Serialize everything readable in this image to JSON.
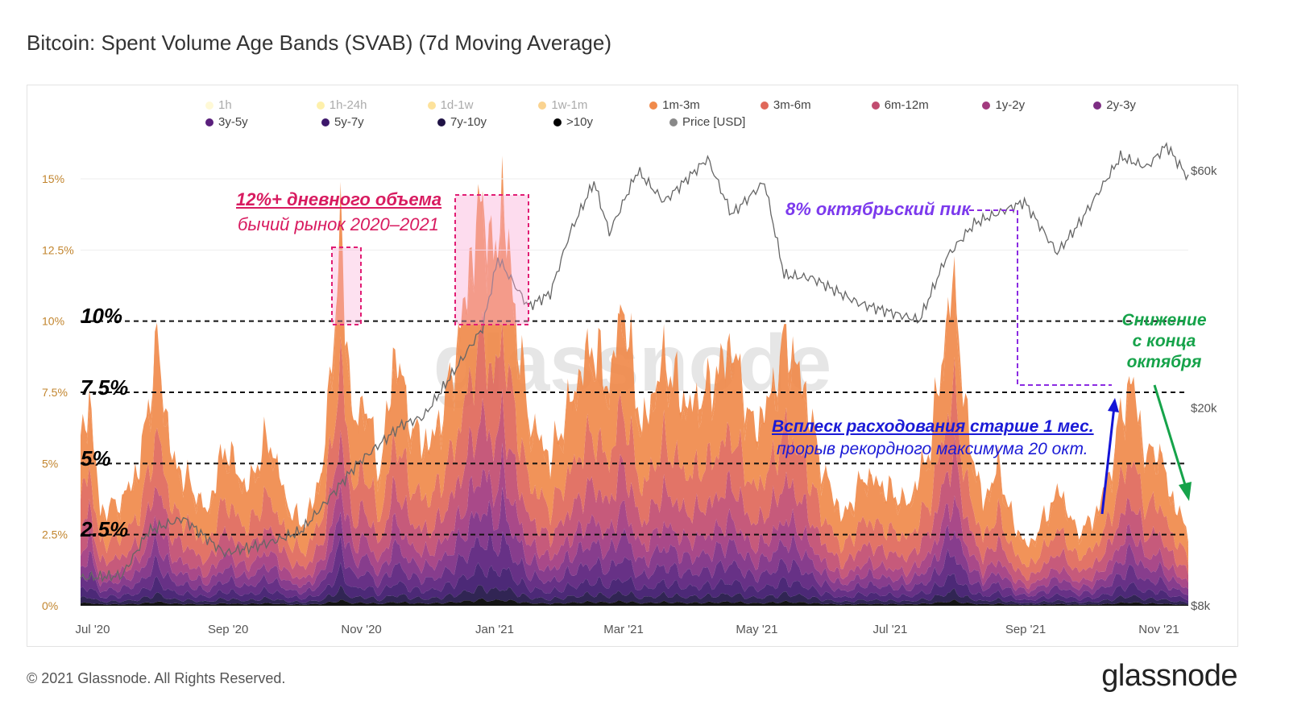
{
  "title": "Bitcoin: Spent Volume Age Bands (SVAB) (7d Moving Average)",
  "footer": "© 2021 Glassnode. All Rights Reserved.",
  "logo": "glassnode",
  "watermark": "glassnode",
  "colors": {
    "1h": "#fff3a6",
    "1h-24h": "#fde047",
    "1d-1w": "#fbbf24",
    "1w-1m": "#f59e0b",
    "1m-3m": "#f08a4b",
    "3m-6m": "#e0685a",
    "6m-12m": "#c14c70",
    "1y-2y": "#a23a7f",
    "2y-3y": "#7d2d83",
    "3y-5y": "#5a1f7c",
    "5y-7y": "#3d176b",
    "7y-10y": "#1f1245",
    ">10y": "#000000",
    "price": "#777777"
  },
  "legend": {
    "row1": [
      {
        "label": "1h",
        "color": "#fff3a6",
        "faded": true
      },
      {
        "label": "1h-24h",
        "color": "#fde047",
        "faded": true
      },
      {
        "label": "1d-1w",
        "color": "#fbbf24",
        "faded": true
      },
      {
        "label": "1w-1m",
        "color": "#f59e0b",
        "faded": true
      },
      {
        "label": "1m-3m",
        "color": "#f08a4b",
        "faded": false
      },
      {
        "label": "3m-6m",
        "color": "#e0685a",
        "faded": false
      },
      {
        "label": "6m-12m",
        "color": "#c14c70",
        "faded": false
      },
      {
        "label": "1y-2y",
        "color": "#a23a7f",
        "faded": false
      },
      {
        "label": "2y-3y",
        "color": "#7d2d83",
        "faded": false
      }
    ],
    "row2": [
      {
        "label": "3y-5y",
        "color": "#5a1f7c",
        "faded": false
      },
      {
        "label": "5y-7y",
        "color": "#3d176b",
        "faded": false
      },
      {
        "label": "7y-10y",
        "color": "#1f1245",
        "faded": false
      },
      {
        "label": ">10y",
        "color": "#000000",
        "faded": false
      },
      {
        "label": "Price [USD]",
        "color": "#888888",
        "faded": false
      }
    ]
  },
  "annotations": {
    "red_bold": "12%+ дневного объема",
    "red_sub": "бычий рынок 2020–2021",
    "purple": "8% октябрьский пик",
    "blue_bold": "Всплеск расходования старше 1 мес.",
    "blue_sub": "прорыв рекордного максимума 20 окт.",
    "green_1": "Снижение",
    "green_2": "с конца",
    "green_3": "октября",
    "level_10": "10%",
    "level_75": "7.5%",
    "level_5": "5%",
    "level_25": "2.5%"
  },
  "chart_data": {
    "type": "area",
    "stacked": true,
    "x_ticks": [
      "Jul '20",
      "Sep '20",
      "Nov '20",
      "Jan '21",
      "Mar '21",
      "May '21",
      "Jul '21",
      "Sep '21",
      "Nov '21"
    ],
    "y_left_ticks": [
      "0%",
      "2.5%",
      "5%",
      "7.5%",
      "10%",
      "12.5%",
      "15%"
    ],
    "y_left_range": [
      0,
      15
    ],
    "y_right_ticks": [
      "$8k",
      "$20k",
      "$60k"
    ],
    "y_right_scale": "log",
    "y_right_values": [
      8000,
      20000,
      60000
    ],
    "reference_lines": [
      2.5,
      5,
      7.5,
      10
    ],
    "x_range": [
      "2020-07-01",
      "2021-11-20"
    ],
    "series_1m_plus_total": {
      "name": "1m-3m",
      "points": [
        [
          "2020-07-01",
          5.5
        ],
        [
          "2020-07-05",
          7.2
        ],
        [
          "2020-07-10",
          3.2
        ],
        [
          "2020-07-20",
          3.6
        ],
        [
          "2020-07-28",
          4.8
        ],
        [
          "2020-08-05",
          9.0
        ],
        [
          "2020-08-12",
          5.0
        ],
        [
          "2020-08-20",
          4.2
        ],
        [
          "2020-08-28",
          3.2
        ],
        [
          "2020-09-05",
          5.5
        ],
        [
          "2020-09-15",
          4.0
        ],
        [
          "2020-09-25",
          5.8
        ],
        [
          "2020-10-05",
          3.2
        ],
        [
          "2020-10-12",
          2.8
        ],
        [
          "2020-10-20",
          4.8
        ],
        [
          "2020-10-28",
          12.5
        ],
        [
          "2020-11-03",
          6.0
        ],
        [
          "2020-11-08",
          7.2
        ],
        [
          "2020-11-15",
          4.5
        ],
        [
          "2020-11-22",
          8.8
        ],
        [
          "2020-11-30",
          6.0
        ],
        [
          "2020-12-08",
          5.5
        ],
        [
          "2020-12-15",
          7.0
        ],
        [
          "2020-12-22",
          9.5
        ],
        [
          "2020-12-28",
          12.5
        ],
        [
          "2021-01-02",
          14.0
        ],
        [
          "2021-01-06",
          11.5
        ],
        [
          "2021-01-10",
          14.2
        ],
        [
          "2021-01-15",
          10.5
        ],
        [
          "2021-01-22",
          6.5
        ],
        [
          "2021-02-01",
          5.0
        ],
        [
          "2021-02-10",
          7.0
        ],
        [
          "2021-02-20",
          9.0
        ],
        [
          "2021-02-28",
          7.5
        ],
        [
          "2021-03-06",
          10.5
        ],
        [
          "2021-03-15",
          6.0
        ],
        [
          "2021-03-25",
          8.5
        ],
        [
          "2021-04-05",
          6.8
        ],
        [
          "2021-04-15",
          7.5
        ],
        [
          "2021-04-25",
          9.0
        ],
        [
          "2021-05-05",
          6.0
        ],
        [
          "2021-05-12",
          7.0
        ],
        [
          "2021-05-20",
          9.2
        ],
        [
          "2021-05-28",
          7.5
        ],
        [
          "2021-06-05",
          4.8
        ],
        [
          "2021-06-15",
          3.0
        ],
        [
          "2021-06-25",
          4.5
        ],
        [
          "2021-07-05",
          4.0
        ],
        [
          "2021-07-15",
          3.5
        ],
        [
          "2021-07-25",
          5.5
        ],
        [
          "2021-08-02",
          10.0
        ],
        [
          "2021-08-05",
          11.2
        ],
        [
          "2021-08-10",
          6.5
        ],
        [
          "2021-08-18",
          3.5
        ],
        [
          "2021-08-25",
          4.8
        ],
        [
          "2021-09-01",
          2.8
        ],
        [
          "2021-09-08",
          2.0
        ],
        [
          "2021-09-15",
          3.0
        ],
        [
          "2021-09-22",
          4.0
        ],
        [
          "2021-09-30",
          2.5
        ],
        [
          "2021-10-08",
          3.0
        ],
        [
          "2021-10-15",
          4.5
        ],
        [
          "2021-10-20",
          6.5
        ],
        [
          "2021-10-25",
          7.8
        ],
        [
          "2021-11-01",
          5.0
        ],
        [
          "2021-11-06",
          5.5
        ],
        [
          "2021-11-12",
          3.8
        ],
        [
          "2021-11-18",
          2.8
        ],
        [
          "2021-11-20",
          2.5
        ]
      ]
    },
    "price_usd": {
      "name": "Price [USD]",
      "points": [
        [
          "2020-07-01",
          9100
        ],
        [
          "2020-07-20",
          9200
        ],
        [
          "2020-08-01",
          11300
        ],
        [
          "2020-08-17",
          12000
        ],
        [
          "2020-09-05",
          10200
        ],
        [
          "2020-09-25",
          10700
        ],
        [
          "2020-10-10",
          11300
        ],
        [
          "2020-10-21",
          12900
        ],
        [
          "2020-11-05",
          15500
        ],
        [
          "2020-11-25",
          18500
        ],
        [
          "2020-12-05",
          19200
        ],
        [
          "2020-12-17",
          23000
        ],
        [
          "2021-01-01",
          29000
        ],
        [
          "2021-01-08",
          40000
        ],
        [
          "2021-01-22",
          32000
        ],
        [
          "2021-02-01",
          34000
        ],
        [
          "2021-02-10",
          45000
        ],
        [
          "2021-02-21",
          57000
        ],
        [
          "2021-02-28",
          45000
        ],
        [
          "2021-03-13",
          60000
        ],
        [
          "2021-03-25",
          52000
        ],
        [
          "2021-04-14",
          63500
        ],
        [
          "2021-04-25",
          49000
        ],
        [
          "2021-05-10",
          57000
        ],
        [
          "2021-05-19",
          37000
        ],
        [
          "2021-06-01",
          36500
        ],
        [
          "2021-06-22",
          32500
        ],
        [
          "2021-07-20",
          30000
        ],
        [
          "2021-08-01",
          40000
        ],
        [
          "2021-08-14",
          47000
        ],
        [
          "2021-09-06",
          52000
        ],
        [
          "2021-09-21",
          41000
        ],
        [
          "2021-10-01",
          47000
        ],
        [
          "2021-10-20",
          64000
        ],
        [
          "2021-11-01",
          61000
        ],
        [
          "2021-11-10",
          67500
        ],
        [
          "2021-11-20",
          58000
        ]
      ]
    }
  }
}
